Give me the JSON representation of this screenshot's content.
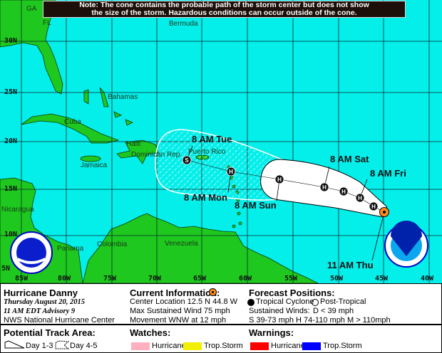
{
  "note": {
    "line1": "Note: The cone contains the probable path of the storm center but does not show",
    "line2": "the size of the storm. Hazardous conditions can occur outside of the cone."
  },
  "map": {
    "colors": {
      "ocean": "#04eeea",
      "land": "#1ec81e",
      "cone": "#ffffff",
      "current_marker": "#ff8c1a"
    },
    "lat_labels": [
      "30N",
      "25N",
      "20N",
      "15N",
      "10N",
      "5N"
    ],
    "lon_labels": [
      "85W",
      "80W",
      "75W",
      "70W",
      "65W",
      "60W",
      "55W",
      "50W",
      "45W",
      "40W"
    ],
    "places": {
      "ga": "GA",
      "fl": "FL",
      "bermuda": "Bermuda",
      "bahamas": "Bahamas",
      "cuba": "Cuba",
      "jamaica": "Jamaica",
      "haiti": "Haiti",
      "dominican": "Dominican Rep.",
      "puerto_rico": "Puerto Rico",
      "nicaragua": "Nicaragua",
      "panama": "Panama",
      "colombia": "Colombia",
      "venezuela": "Venezuela"
    },
    "forecast_labels": {
      "thu": "11 AM Thu",
      "fri": "8 AM Fri",
      "sat": "8 AM Sat",
      "sun": "8 AM Sun",
      "mon": "8 AM Mon",
      "tue": "8 AM Tue"
    },
    "points": [
      {
        "symbol": "H"
      },
      {
        "symbol": "H"
      },
      {
        "symbol": "H"
      },
      {
        "symbol": "H"
      },
      {
        "symbol": "H"
      },
      {
        "symbol": "H"
      },
      {
        "symbol": "S"
      }
    ],
    "logos": {
      "nws": "NATIONAL WEATHER SERVICE",
      "noaa": "NOAA"
    }
  },
  "legend": {
    "storm_name": "Hurricane Danny",
    "date": "Thursday  August 20, 2015",
    "advisory": "11 AM EDT Advisory 9",
    "center": "NWS National Hurricane Center",
    "current_title": "Current Information:",
    "center_location": "Center Location 12.5 N  44.8 W",
    "max_wind": "Max Sustained Wind  75 mph",
    "movement": "Movement WNW at  12 mph",
    "forecast_title": "Forecast Positions:",
    "tropical_cyclone": "Tropical Cyclone",
    "post_tropical": "Post-Tropical",
    "sustained_winds": "Sustained Winds:",
    "d_line": "D  < 39 mph",
    "s_line": "S  39-73 mph  H  74-110 mph  M  > 110mph",
    "track_title": "Potential Track Area:",
    "day13": "Day 1-3",
    "day45": "Day 4-5",
    "watches_title": "Watches:",
    "warnings_title": "Warnings:",
    "watch_hurricane": "Hurricane",
    "watch_ts": "Trop.Storm",
    "warn_hurricane": "Hurricane",
    "warn_ts": "Trop.Storm",
    "colors": {
      "watch_hurricane": "#ffb0c0",
      "watch_ts": "#f0f000",
      "warn_hurricane": "#ff0000",
      "warn_ts": "#0000ff"
    }
  }
}
